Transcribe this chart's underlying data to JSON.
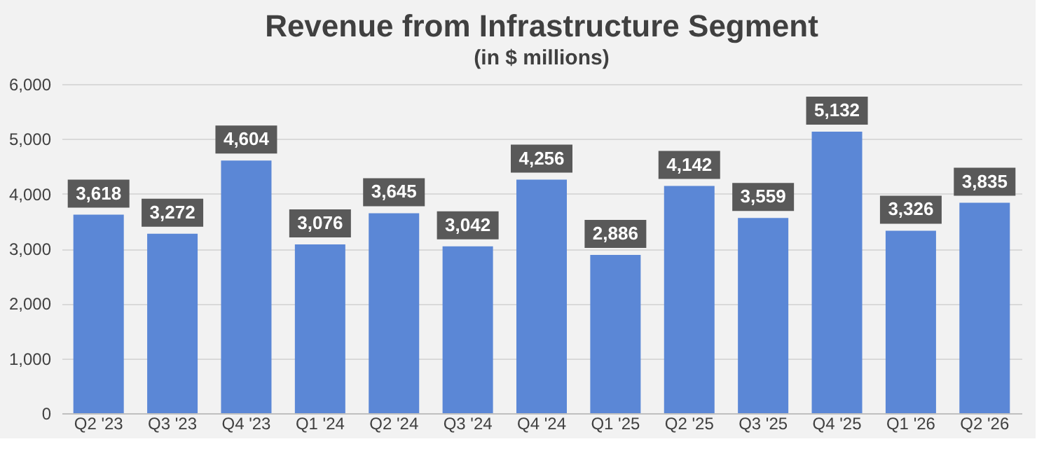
{
  "chart_data": {
    "type": "bar",
    "title": "Revenue from Infrastructure Segment",
    "subtitle": "(in $ millions)",
    "categories": [
      "Q2 '23",
      "Q3 '23",
      "Q4 '23",
      "Q1 '24",
      "Q2 '24",
      "Q3 '24",
      "Q4 '24",
      "Q1 '25",
      "Q2 '25",
      "Q3 '25",
      "Q4 '25",
      "Q1 '26",
      "Q2 '26"
    ],
    "values": [
      3618,
      3272,
      4604,
      3076,
      3645,
      3042,
      4256,
      2886,
      4142,
      3559,
      5132,
      3326,
      3835
    ],
    "value_labels": [
      "3,618",
      "3,272",
      "4,604",
      "3,076",
      "3,645",
      "3,042",
      "4,256",
      "2,886",
      "4,142",
      "3,559",
      "5,132",
      "3,326",
      "3,835"
    ],
    "color": "#5b87d6",
    "ylim": [
      0,
      6000
    ],
    "yticks": [
      0,
      {
        "value": 1000,
        "label": "1,000"
      },
      {
        "value": 2000,
        "label": "2,000"
      },
      {
        "value": 3000,
        "label": "3,000"
      },
      {
        "value": 4000,
        "label": "4,000"
      },
      {
        "value": 5000,
        "label": "5,000"
      },
      {
        "value": 6000,
        "label": "6,000"
      }
    ],
    "grid": "y"
  }
}
